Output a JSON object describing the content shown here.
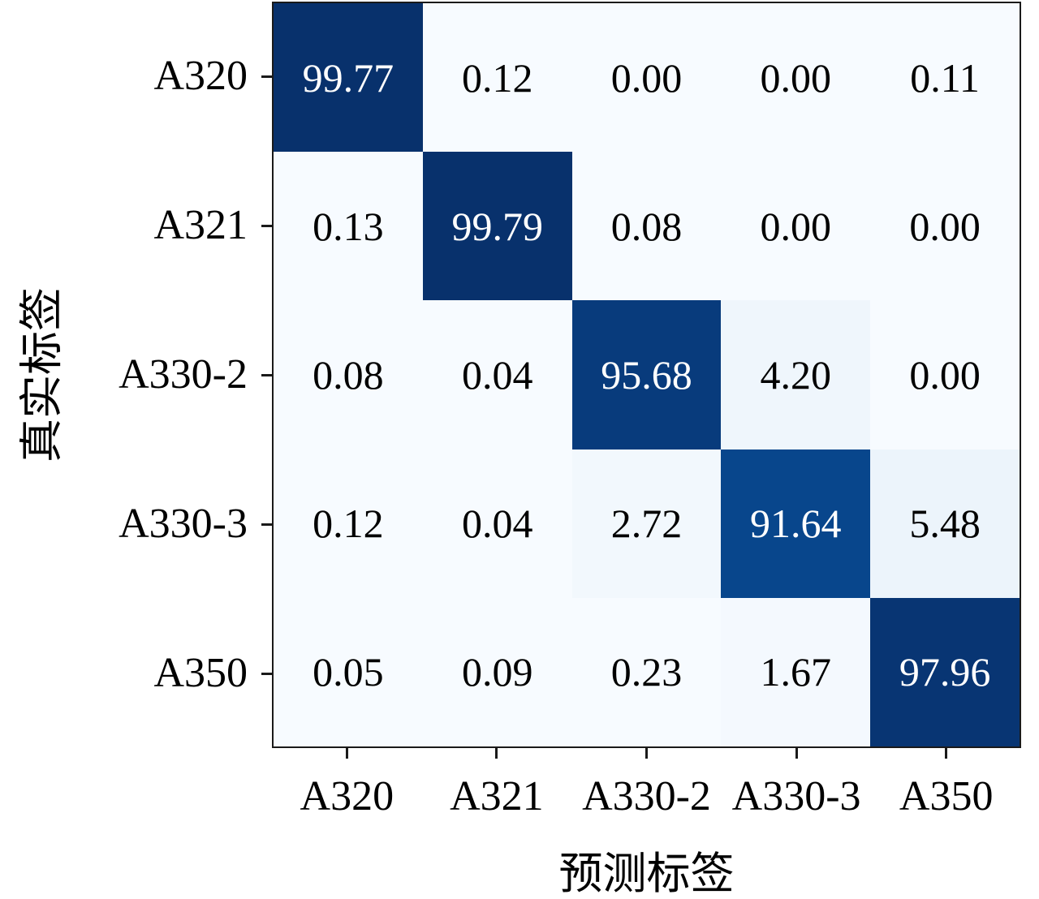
{
  "chart_data": {
    "type": "heatmap",
    "title": "",
    "xlabel": "预测标签",
    "ylabel": "真实标签",
    "x_tick_labels": [
      "A320",
      "A321",
      "A330-2",
      "A330-3",
      "A350"
    ],
    "y_tick_labels": [
      "A320",
      "A321",
      "A330-2",
      "A330-3",
      "A350"
    ],
    "values": [
      [
        99.77,
        0.12,
        0.0,
        0.0,
        0.11
      ],
      [
        0.13,
        99.79,
        0.08,
        0.0,
        0.0
      ],
      [
        0.08,
        0.04,
        95.68,
        4.2,
        0.0
      ],
      [
        0.12,
        0.04,
        2.72,
        91.64,
        5.48
      ],
      [
        0.05,
        0.09,
        0.23,
        1.67,
        97.96
      ]
    ],
    "vmin": 0,
    "vmax": 100,
    "decimals": 2,
    "colormap": "Blues",
    "colormap_stops": [
      "#f7fbff",
      "#deebf7",
      "#c6dbef",
      "#9ecae1",
      "#6baed6",
      "#4292c6",
      "#2171b5",
      "#08519c",
      "#08306b"
    ],
    "text_switch_value": 50,
    "colors": {
      "text_on_dark": "#ffffff",
      "text_on_light": "#000000",
      "spine": "#1a1a1a",
      "background": "#ffffff"
    },
    "layout_hints": {
      "grid": "off",
      "legend": "none",
      "cell_annotations": "on"
    }
  }
}
